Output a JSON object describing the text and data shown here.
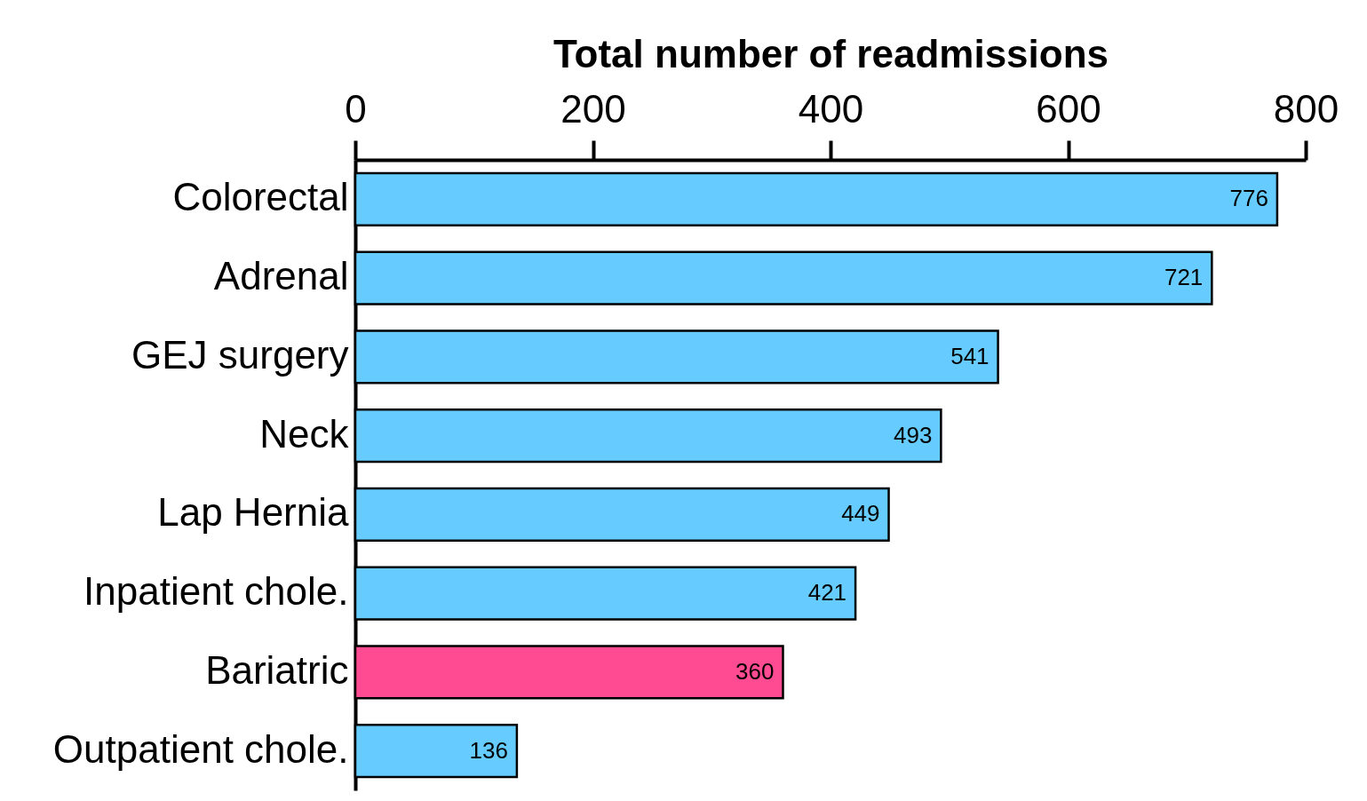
{
  "chart_data": {
    "type": "bar",
    "orientation": "horizontal",
    "xlabel": "Total number of readmissions",
    "categories": [
      "Colorectal",
      "Adrenal",
      "GEJ surgery",
      "Neck",
      "Lap Hernia",
      "Inpatient chole.",
      "Bariatric",
      "Outpatient chole."
    ],
    "values": [
      776,
      721,
      541,
      493,
      449,
      421,
      360,
      136
    ],
    "colors": [
      "#66ccff",
      "#66ccff",
      "#66ccff",
      "#66ccff",
      "#66ccff",
      "#66ccff",
      "#ff4b91",
      "#66ccff"
    ],
    "xlim": [
      0,
      800
    ],
    "xticks": [
      0,
      200,
      400,
      600,
      800
    ],
    "grid": false,
    "data_labels": true
  }
}
